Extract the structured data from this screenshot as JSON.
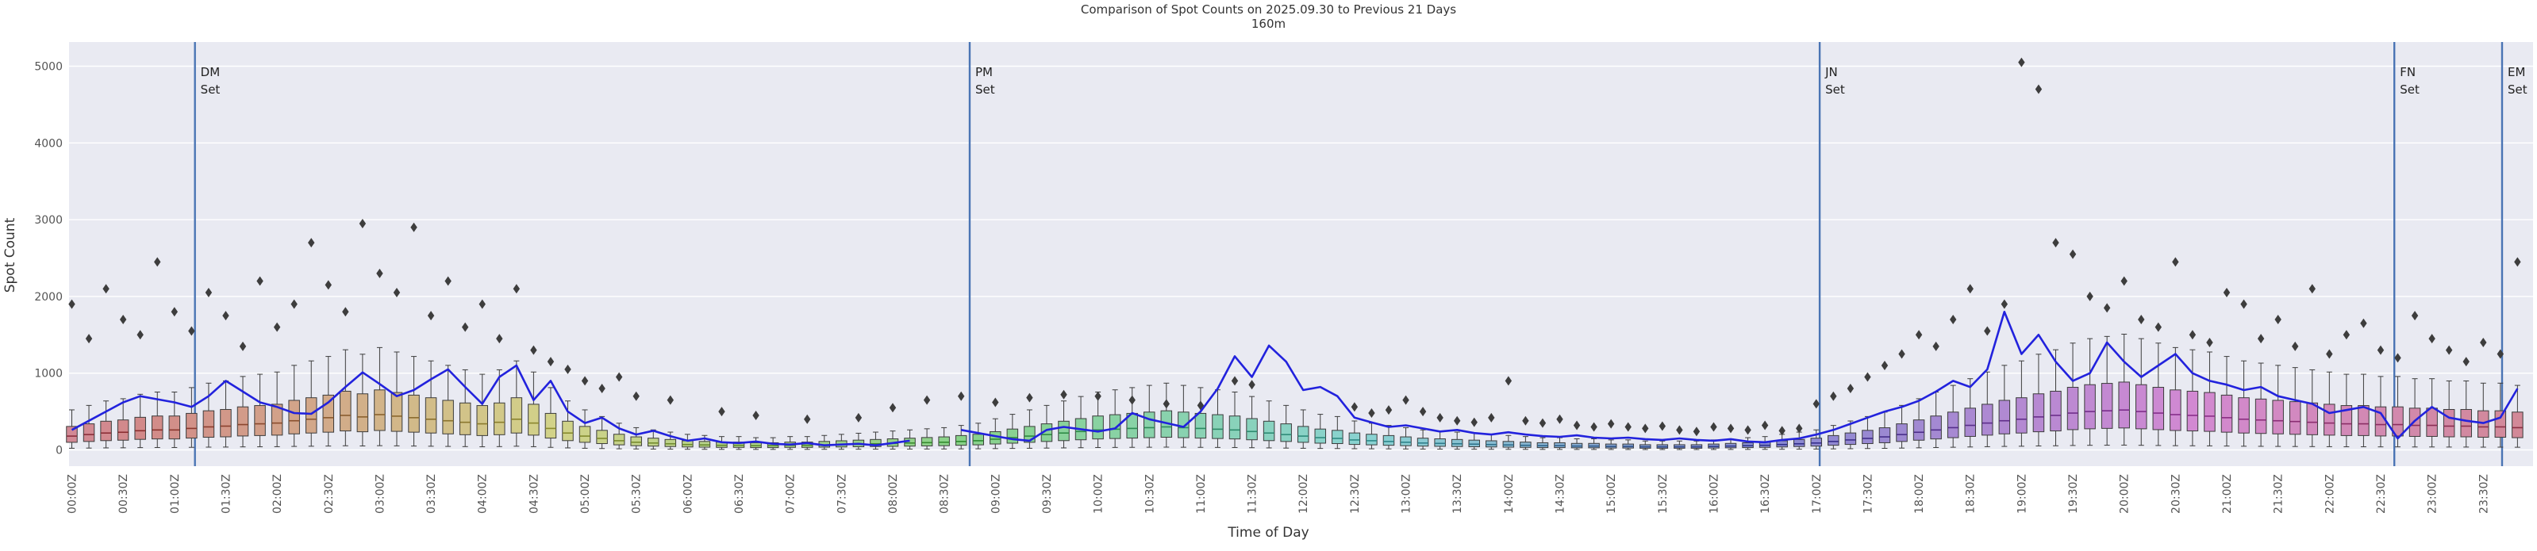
{
  "chart_data": {
    "type": "boxplot+line",
    "title": "Comparison of Spot Counts on 2025.09.30 to Previous 21 Days",
    "subtitle": "160m",
    "xlabel": "Time of Day",
    "ylabel": "Spot Count",
    "ylim": [
      0,
      5000
    ],
    "yticks": [
      0,
      1000,
      2000,
      3000,
      4000,
      5000
    ],
    "grid": "horizontal-only, white on light-lavender panel",
    "legend": "none",
    "x_tick_labels": [
      "00:00Z",
      "00:30Z",
      "01:00Z",
      "01:30Z",
      "02:00Z",
      "02:30Z",
      "03:00Z",
      "03:30Z",
      "04:00Z",
      "04:30Z",
      "05:00Z",
      "05:30Z",
      "06:00Z",
      "06:30Z",
      "07:00Z",
      "07:30Z",
      "08:00Z",
      "08:30Z",
      "09:00Z",
      "09:30Z",
      "10:00Z",
      "10:30Z",
      "11:00Z",
      "11:30Z",
      "12:00Z",
      "12:30Z",
      "13:00Z",
      "13:30Z",
      "14:00Z",
      "14:30Z",
      "15:00Z",
      "15:30Z",
      "16:00Z",
      "16:30Z",
      "17:00Z",
      "17:30Z",
      "18:00Z",
      "18:30Z",
      "19:00Z",
      "19:30Z",
      "20:00Z",
      "20:30Z",
      "21:00Z",
      "21:30Z",
      "22:00Z",
      "22:30Z",
      "23:00Z",
      "23:30Z"
    ],
    "box_interval_minutes": 10,
    "boxes": {
      "description": "Previous-21-day spot-count distribution per 10-minute bin (estimated medians)",
      "med": [
        180,
        200,
        220,
        230,
        250,
        260,
        260,
        280,
        300,
        310,
        330,
        340,
        350,
        380,
        400,
        420,
        450,
        430,
        460,
        440,
        420,
        400,
        380,
        360,
        340,
        360,
        400,
        350,
        280,
        220,
        180,
        150,
        120,
        100,
        90,
        80,
        70,
        65,
        60,
        60,
        55,
        55,
        60,
        60,
        65,
        70,
        75,
        80,
        85,
        90,
        95,
        100,
        110,
        120,
        140,
        160,
        180,
        200,
        220,
        240,
        260,
        270,
        280,
        290,
        300,
        290,
        280,
        270,
        260,
        240,
        220,
        200,
        180,
        160,
        150,
        130,
        120,
        110,
        100,
        90,
        85,
        80,
        75,
        70,
        65,
        60,
        55,
        55,
        50,
        50,
        45,
        45,
        40,
        40,
        40,
        40,
        45,
        50,
        55,
        60,
        70,
        80,
        90,
        110,
        130,
        150,
        170,
        200,
        230,
        260,
        290,
        320,
        350,
        380,
        400,
        430,
        450,
        480,
        500,
        510,
        520,
        500,
        480,
        460,
        450,
        440,
        420,
        400,
        390,
        380,
        370,
        360,
        350,
        340,
        340,
        330,
        330,
        320,
        320,
        310,
        310,
        300,
        300,
        290
      ],
      "q1_factor": 0.55,
      "q3_factor": 1.7,
      "whisker_lo_factor": 0.12,
      "whisker_hi_factor": 2.9
    },
    "line_today": {
      "name": "2025.09.30",
      "values": [
        260,
        380,
        500,
        620,
        700,
        660,
        620,
        560,
        700,
        900,
        760,
        620,
        560,
        480,
        470,
        620,
        820,
        1010,
        860,
        700,
        780,
        920,
        1050,
        820,
        600,
        950,
        1100,
        650,
        900,
        500,
        350,
        420,
        280,
        200,
        250,
        180,
        120,
        150,
        100,
        90,
        110,
        80,
        70,
        90,
        60,
        70,
        80,
        60,
        90,
        120,
        null,
        null,
        260,
        220,
        180,
        140,
        120,
        260,
        300,
        270,
        240,
        280,
        480,
        400,
        350,
        300,
        500,
        800,
        1220,
        950,
        1360,
        1150,
        780,
        820,
        700,
        420,
        360,
        300,
        320,
        280,
        240,
        260,
        220,
        200,
        230,
        200,
        180,
        170,
        190,
        160,
        150,
        160,
        140,
        130,
        150,
        130,
        120,
        140,
        110,
        100,
        130,
        150,
        200,
        260,
        340,
        420,
        500,
        560,
        640,
        760,
        900,
        820,
        1050,
        1800,
        1250,
        1500,
        1150,
        900,
        1000,
        1400,
        1150,
        950,
        1100,
        1250,
        1000,
        900,
        850,
        780,
        820,
        700,
        650,
        600,
        480,
        520,
        560,
        480,
        150,
        380,
        560,
        420,
        380,
        350,
        420,
        800
      ]
    },
    "outliers": [
      [
        0,
        1900
      ],
      [
        1,
        1450
      ],
      [
        2,
        2100
      ],
      [
        3,
        1700
      ],
      [
        4,
        1500
      ],
      [
        5,
        2450
      ],
      [
        6,
        1800
      ],
      [
        7,
        1550
      ],
      [
        8,
        2050
      ],
      [
        9,
        1750
      ],
      [
        10,
        1350
      ],
      [
        11,
        2200
      ],
      [
        12,
        1600
      ],
      [
        13,
        1900
      ],
      [
        14,
        2700
      ],
      [
        15,
        2150
      ],
      [
        16,
        1800
      ],
      [
        17,
        2950
      ],
      [
        18,
        2300
      ],
      [
        19,
        2050
      ],
      [
        20,
        2900
      ],
      [
        21,
        1750
      ],
      [
        22,
        2200
      ],
      [
        23,
        1600
      ],
      [
        24,
        1900
      ],
      [
        25,
        1450
      ],
      [
        26,
        2100
      ],
      [
        27,
        1300
      ],
      [
        28,
        1150
      ],
      [
        29,
        1050
      ],
      [
        30,
        900
      ],
      [
        31,
        800
      ],
      [
        32,
        950
      ],
      [
        33,
        700
      ],
      [
        35,
        650
      ],
      [
        38,
        500
      ],
      [
        40,
        450
      ],
      [
        43,
        400
      ],
      [
        46,
        420
      ],
      [
        48,
        550
      ],
      [
        50,
        650
      ],
      [
        52,
        700
      ],
      [
        54,
        620
      ],
      [
        56,
        680
      ],
      [
        58,
        720
      ],
      [
        60,
        700
      ],
      [
        62,
        650
      ],
      [
        64,
        600
      ],
      [
        66,
        580
      ],
      [
        68,
        900
      ],
      [
        69,
        850
      ],
      [
        75,
        560
      ],
      [
        76,
        480
      ],
      [
        77,
        520
      ],
      [
        78,
        650
      ],
      [
        79,
        500
      ],
      [
        80,
        420
      ],
      [
        81,
        380
      ],
      [
        82,
        360
      ],
      [
        83,
        420
      ],
      [
        84,
        900
      ],
      [
        85,
        380
      ],
      [
        86,
        350
      ],
      [
        87,
        400
      ],
      [
        88,
        320
      ],
      [
        89,
        300
      ],
      [
        90,
        340
      ],
      [
        91,
        300
      ],
      [
        92,
        280
      ],
      [
        93,
        310
      ],
      [
        94,
        260
      ],
      [
        95,
        240
      ],
      [
        96,
        300
      ],
      [
        97,
        280
      ],
      [
        98,
        260
      ],
      [
        99,
        320
      ],
      [
        100,
        250
      ],
      [
        101,
        280
      ],
      [
        102,
        600
      ],
      [
        103,
        700
      ],
      [
        104,
        800
      ],
      [
        105,
        950
      ],
      [
        106,
        1100
      ],
      [
        107,
        1250
      ],
      [
        108,
        1500
      ],
      [
        109,
        1350
      ],
      [
        110,
        1700
      ],
      [
        111,
        2100
      ],
      [
        112,
        1550
      ],
      [
        113,
        1900
      ],
      [
        114,
        5050
      ],
      [
        115,
        4700
      ],
      [
        116,
        2700
      ],
      [
        117,
        2550
      ],
      [
        118,
        2000
      ],
      [
        119,
        1850
      ],
      [
        120,
        2200
      ],
      [
        121,
        1700
      ],
      [
        122,
        1600
      ],
      [
        123,
        2450
      ],
      [
        124,
        1500
      ],
      [
        125,
        1400
      ],
      [
        126,
        2050
      ],
      [
        127,
        1900
      ],
      [
        128,
        1450
      ],
      [
        129,
        1700
      ],
      [
        130,
        1350
      ],
      [
        131,
        2100
      ],
      [
        132,
        1250
      ],
      [
        133,
        1500
      ],
      [
        134,
        1650
      ],
      [
        135,
        1300
      ],
      [
        136,
        1200
      ],
      [
        137,
        1750
      ],
      [
        138,
        1450
      ],
      [
        139,
        1300
      ],
      [
        140,
        1150
      ],
      [
        141,
        1400
      ],
      [
        142,
        1250
      ],
      [
        143,
        2450
      ]
    ],
    "vlines": [
      {
        "label": "DM Set",
        "minutes": 72
      },
      {
        "label": "PM Set",
        "minutes": 525
      },
      {
        "label": "JN Set",
        "minutes": 1022
      },
      {
        "label": "FN Set",
        "minutes": 1358
      },
      {
        "label": "EM Set",
        "minutes": 1421
      }
    ],
    "colors": {
      "line_today": "#2222dd",
      "vline": "#4a74b4",
      "box_edge": "#3c3c3c",
      "outlier": "#3d3d3d",
      "plot_bg": "#e9eaf2",
      "grid": "#ffffff",
      "tick_label": "#555555",
      "title_text": "#333333",
      "box_hue_start": 350,
      "box_hue_step": 2.5,
      "box_sat": 45,
      "box_light": 68
    }
  }
}
